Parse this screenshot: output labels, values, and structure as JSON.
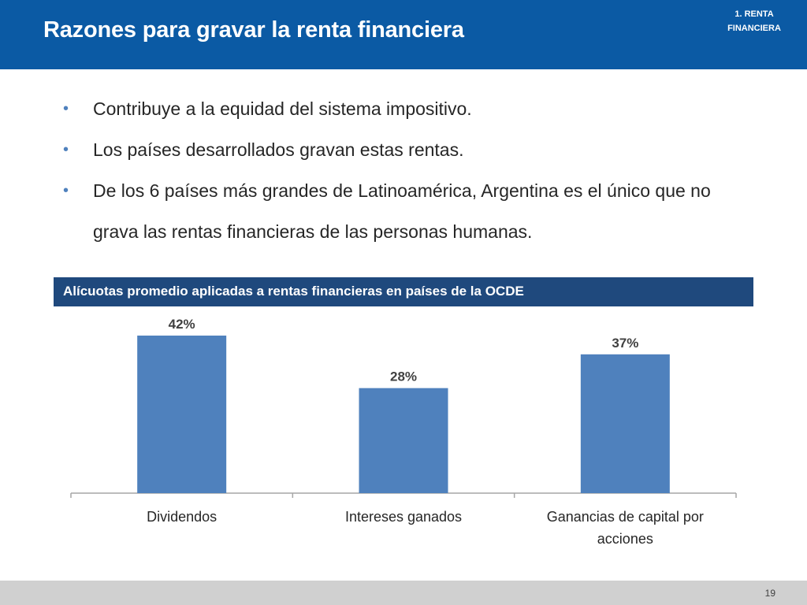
{
  "header": {
    "title": "Razones para gravar la renta financiera",
    "section_tag_line1": "1. RENTA",
    "section_tag_line2": "FINANCIERA"
  },
  "bullets": [
    "Contribuye a la equidad del sistema impositivo.",
    "Los países desarrollados gravan estas rentas.",
    "De los 6 países más grandes de Latinoamérica, Argentina es el único que no grava las rentas financieras de las personas humanas."
  ],
  "bullet_marker": "•",
  "chart_banner": "Alícuotas promedio aplicadas a rentas financieras en países de la OCDE",
  "chart_data": {
    "type": "bar",
    "title": "",
    "categories": [
      [
        "Dividendos"
      ],
      [
        "Intereses ganados"
      ],
      [
        "Ganancias de capital por",
        "acciones"
      ]
    ],
    "values": [
      42,
      28,
      37
    ],
    "data_labels": [
      "42%",
      "28%",
      "37%"
    ],
    "ylim": [
      0,
      42
    ],
    "bar_color": "#4f81bd",
    "xlabel": "",
    "ylabel": ""
  },
  "footer": {
    "page_number": "19"
  },
  "colors": {
    "header_bg": "#0b5aa4",
    "banner_bg": "#1f497d",
    "bullet_color": "#4f81bd",
    "footer_bg": "#d0d0d0"
  }
}
